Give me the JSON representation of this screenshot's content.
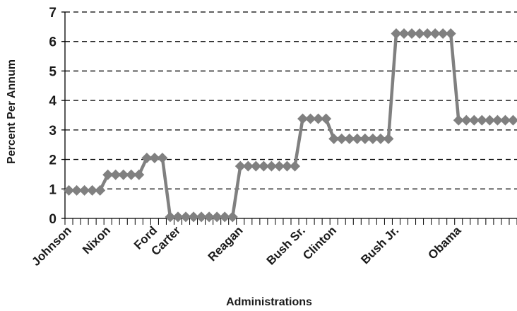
{
  "chart_data": {
    "type": "line",
    "title": "",
    "xlabel": "Administrations",
    "ylabel": "Percent Per Annum",
    "ylim": [
      0,
      7
    ],
    "yticks": [
      "0",
      "1",
      "2",
      "3",
      "4",
      "5",
      "6",
      "7"
    ],
    "grid": "horizontal-dashed",
    "line_color": "#808080",
    "marker": "diamond",
    "x_labels": [
      {
        "index": 0,
        "label": "Johnson"
      },
      {
        "index": 5,
        "label": "Nixon"
      },
      {
        "index": 11,
        "label": "Ford"
      },
      {
        "index": 14,
        "label": "Carter"
      },
      {
        "index": 22,
        "label": "Reagan"
      },
      {
        "index": 30,
        "label": "Bush Sr."
      },
      {
        "index": 34,
        "label": "Clinton"
      },
      {
        "index": 42,
        "label": "Bush Jr."
      },
      {
        "index": 50,
        "label": "Obama"
      }
    ],
    "series": [
      {
        "values": [
          0.95,
          0.95,
          0.95,
          0.95,
          0.95,
          1.48,
          1.48,
          1.48,
          1.48,
          1.48,
          2.05,
          2.05,
          2.05,
          0.05,
          0.05,
          0.05,
          0.05,
          0.05,
          0.05,
          0.05,
          0.05,
          0.05,
          1.77,
          1.77,
          1.77,
          1.77,
          1.77,
          1.77,
          1.77,
          1.77,
          3.38,
          3.38,
          3.38,
          3.38,
          2.7,
          2.7,
          2.7,
          2.7,
          2.7,
          2.7,
          2.7,
          2.7,
          6.27,
          6.27,
          6.27,
          6.27,
          6.27,
          6.27,
          6.27,
          6.27,
          3.33,
          3.33,
          3.33,
          3.33,
          3.33,
          3.33,
          3.33,
          3.33
        ]
      }
    ]
  }
}
